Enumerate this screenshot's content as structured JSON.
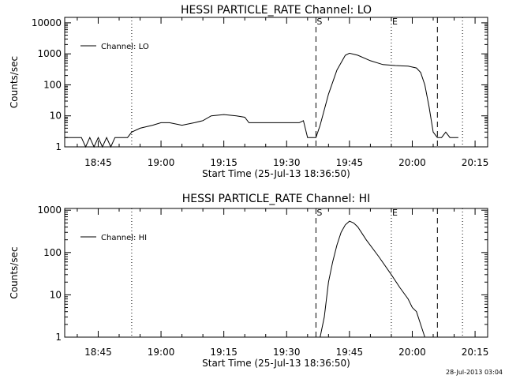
{
  "page_stamp": "28-Jul-2013 03:04",
  "chart_data": [
    {
      "type": "line",
      "title": "HESSI PARTICLE_RATE Channel: LO",
      "xlabel": "Start Time (25-Jul-13 18:36:50)",
      "ylabel": "Counts/sec",
      "y_scale": "log",
      "ylim": [
        1,
        15000
      ],
      "y_ticks": [
        {
          "value": 1,
          "label": "1"
        },
        {
          "value": 10,
          "label": "10"
        },
        {
          "value": 100,
          "label": "100"
        },
        {
          "value": 1000,
          "label": "1000"
        },
        {
          "value": 10000,
          "label": "10000"
        }
      ],
      "xlim": [
        "18:37",
        "20:18"
      ],
      "x_ticks": [
        "18:45",
        "19:00",
        "19:15",
        "19:30",
        "19:45",
        "20:00",
        "20:15"
      ],
      "legend": {
        "placement": "top-left",
        "entries": [
          "Channel: LO"
        ]
      },
      "markers": [
        {
          "time": "18:53",
          "style": "dotted",
          "label": ""
        },
        {
          "time": "19:37",
          "style": "dashed",
          "label": "S"
        },
        {
          "time": "19:55",
          "style": "dotted",
          "label": "E"
        },
        {
          "time": "20:06",
          "style": "dashed",
          "label": ""
        },
        {
          "time": "20:12",
          "style": "dotted",
          "label": ""
        }
      ],
      "series": [
        {
          "name": "Channel: LO",
          "points": [
            [
              "18:37",
              2
            ],
            [
              "18:41",
              2
            ],
            [
              "18:42",
              1
            ],
            [
              "18:43",
              2
            ],
            [
              "18:44",
              1
            ],
            [
              "18:45",
              2
            ],
            [
              "18:46",
              1
            ],
            [
              "18:47",
              2
            ],
            [
              "18:48",
              1
            ],
            [
              "18:49",
              2
            ],
            [
              "18:50",
              2
            ],
            [
              "18:52",
              2
            ],
            [
              "18:53",
              3
            ],
            [
              "18:55",
              4
            ],
            [
              "18:58",
              5
            ],
            [
              "19:00",
              6
            ],
            [
              "19:02",
              6
            ],
            [
              "19:05",
              5
            ],
            [
              "19:08",
              6
            ],
            [
              "19:10",
              7
            ],
            [
              "19:12",
              10
            ],
            [
              "19:15",
              11
            ],
            [
              "19:18",
              10
            ],
            [
              "19:20",
              9
            ],
            [
              "19:21",
              6
            ],
            [
              "19:25",
              6
            ],
            [
              "19:28",
              6
            ],
            [
              "19:30",
              6
            ],
            [
              "19:33",
              6
            ],
            [
              "19:34",
              7
            ],
            [
              "19:35",
              2
            ],
            [
              "19:36",
              2
            ],
            [
              "19:37",
              2
            ],
            [
              "19:38",
              5
            ],
            [
              "19:40",
              50
            ],
            [
              "19:42",
              300
            ],
            [
              "19:44",
              900
            ],
            [
              "19:45",
              1050
            ],
            [
              "19:47",
              900
            ],
            [
              "19:50",
              600
            ],
            [
              "19:53",
              450
            ],
            [
              "19:56",
              420
            ],
            [
              "19:59",
              400
            ],
            [
              "20:01",
              350
            ],
            [
              "20:02",
              250
            ],
            [
              "20:03",
              100
            ],
            [
              "20:04",
              20
            ],
            [
              "20:05",
              3
            ],
            [
              "20:06",
              2
            ],
            [
              "20:07",
              2
            ],
            [
              "20:08",
              3
            ],
            [
              "20:09",
              2
            ],
            [
              "20:10",
              2
            ],
            [
              "20:11",
              2
            ]
          ]
        }
      ]
    },
    {
      "type": "line",
      "title": "HESSI PARTICLE_RATE Channel: HI",
      "xlabel": "Start Time (25-Jul-13 18:36:50)",
      "ylabel": "Counts/sec",
      "y_scale": "log",
      "ylim": [
        1,
        1100
      ],
      "y_ticks": [
        {
          "value": 1,
          "label": "1"
        },
        {
          "value": 10,
          "label": "10"
        },
        {
          "value": 100,
          "label": "100"
        },
        {
          "value": 1000,
          "label": "1000"
        }
      ],
      "xlim": [
        "18:37",
        "20:18"
      ],
      "x_ticks": [
        "18:45",
        "19:00",
        "19:15",
        "19:30",
        "19:45",
        "20:00",
        "20:15"
      ],
      "legend": {
        "placement": "top-left",
        "entries": [
          "Channel: HI"
        ]
      },
      "markers": [
        {
          "time": "18:53",
          "style": "dotted",
          "label": ""
        },
        {
          "time": "19:37",
          "style": "dashed",
          "label": "S"
        },
        {
          "time": "19:55",
          "style": "dotted",
          "label": "E"
        },
        {
          "time": "20:06",
          "style": "dashed",
          "label": ""
        },
        {
          "time": "20:12",
          "style": "dotted",
          "label": ""
        }
      ],
      "series": [
        {
          "name": "Channel: HI",
          "points": [
            [
              "19:38",
              1
            ],
            [
              "19:39",
              3
            ],
            [
              "19:40",
              20
            ],
            [
              "19:41",
              60
            ],
            [
              "19:42",
              150
            ],
            [
              "19:43",
              300
            ],
            [
              "19:44",
              450
            ],
            [
              "19:45",
              550
            ],
            [
              "19:46",
              500
            ],
            [
              "19:47",
              400
            ],
            [
              "19:49",
              200
            ],
            [
              "19:52",
              80
            ],
            [
              "19:55",
              30
            ],
            [
              "19:57",
              15
            ],
            [
              "19:59",
              8
            ],
            [
              "20:00",
              5
            ],
            [
              "20:01",
              4
            ],
            [
              "20:02",
              2
            ],
            [
              "20:03",
              1
            ]
          ]
        }
      ]
    }
  ]
}
